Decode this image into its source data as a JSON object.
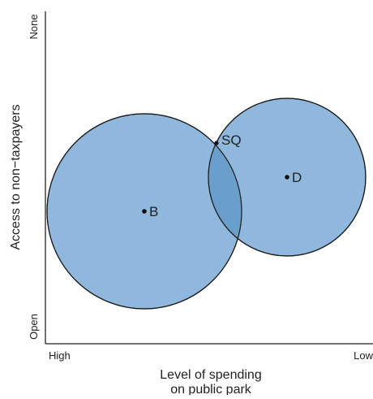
{
  "axes": {
    "x_title_line1": "Level of spending",
    "x_title_line2": "on public park",
    "x_tick_left": "High",
    "x_tick_right": "Low",
    "y_title": "Access to non−taxpayers",
    "y_tick_bottom": "Open",
    "y_tick_top": "None"
  },
  "points": {
    "b_label": "B",
    "d_label": "D",
    "sq_label": "SQ"
  },
  "colors": {
    "circle_fill": "#8fb8dc",
    "overlap_fill": "#6a9fcb",
    "circle_stroke": "#1a1a1a",
    "axis": "#222222",
    "text": "#222222"
  }
}
